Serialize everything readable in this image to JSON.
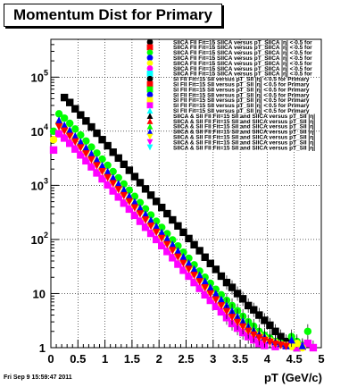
{
  "chart_data": {
    "type": "scatter",
    "title": "Momentum Dist for Primary",
    "xlabel": "pT (GeV/c)",
    "ylabel": "",
    "xlim": [
      0,
      5
    ],
    "ylim": [
      1,
      500000
    ],
    "y_scale": "log",
    "grid": true,
    "legend_placement": "top-right",
    "x_ticks": [
      "0",
      "0.5",
      "1",
      "1.5",
      "2",
      "2.5",
      "3",
      "3.5",
      "4",
      "4.5",
      "5"
    ],
    "y_ticks": [
      {
        "mantissa": "1",
        "exp": ""
      },
      {
        "mantissa": "10",
        "exp": ""
      },
      {
        "mantissa": "10",
        "exp": "2"
      },
      {
        "mantissa": "10",
        "exp": "3"
      },
      {
        "mantissa": "10",
        "exp": "4"
      },
      {
        "mantissa": "10",
        "exp": "5"
      }
    ],
    "x": [
      0.05,
      0.15,
      0.25,
      0.35,
      0.45,
      0.55,
      0.65,
      0.75,
      0.85,
      0.95,
      1.05,
      1.15,
      1.25,
      1.35,
      1.45,
      1.55,
      1.65,
      1.75,
      1.85,
      1.95,
      2.05,
      2.15,
      2.25,
      2.35,
      2.45,
      2.55,
      2.65,
      2.75,
      2.85,
      2.95,
      3.05,
      3.15,
      3.25,
      3.35,
      3.45,
      3.55,
      3.65,
      3.75,
      3.85,
      3.95,
      4.05,
      4.15,
      4.25,
      4.35,
      4.45,
      4.55,
      4.65,
      4.75,
      4.85,
      4.95
    ],
    "series": [
      {
        "marker": "square",
        "color": "#000000",
        "values": [
          null,
          null,
          42000,
          34000,
          26000,
          20000,
          15500,
          12000,
          9200,
          7000,
          5400,
          4100,
          3200,
          2450,
          1900,
          1450,
          1120,
          860,
          660,
          505,
          390,
          300,
          230,
          178,
          136,
          104,
          80,
          62,
          47,
          36,
          28,
          21,
          16,
          13,
          10,
          8,
          6,
          5,
          4,
          3.2,
          2.6,
          2,
          1.6,
          1.3,
          1.1,
          1,
          null,
          null,
          null,
          null
        ]
      },
      {
        "marker": "circle",
        "color": "#00ff00",
        "values": [
          10000,
          21000,
          17500,
          14000,
          11000,
          8500,
          6600,
          5100,
          3950,
          3050,
          2350,
          1800,
          1380,
          1060,
          815,
          625,
          480,
          368,
          283,
          217,
          167,
          128,
          98,
          76,
          58,
          45,
          34,
          26,
          20,
          15.5,
          12,
          9.5,
          7.5,
          6,
          4.8,
          3.8,
          3,
          2.5,
          2,
          1.7,
          1.5,
          1.3,
          1.2,
          1.1,
          1.6,
          1.3,
          1.1,
          2,
          null,
          null
        ]
      },
      {
        "marker": "square",
        "color": "#ff00ff",
        "values": [
          4500,
          9000,
          7500,
          6000,
          4700,
          3650,
          2850,
          2200,
          1700,
          1320,
          1020,
          790,
          610,
          470,
          365,
          280,
          217,
          168,
          130,
          100,
          77,
          60,
          46,
          35,
          27,
          21,
          16,
          12.5,
          9.5,
          7.5,
          5.8,
          4.6,
          3.6,
          2.8,
          2.3,
          1.9,
          1.6,
          1.4,
          1.2,
          1.1,
          null,
          1.05,
          null,
          1.1,
          null,
          1,
          1.05,
          1.2,
          1,
          null
        ]
      },
      {
        "marker": "circle",
        "color": "#ffff00",
        "values": [
          7000,
          14000,
          11500,
          9200,
          7200,
          5600,
          4350,
          3380,
          2620,
          2030,
          1570,
          1210,
          935,
          720,
          555,
          428,
          330,
          254,
          196,
          151,
          116,
          90,
          69,
          53,
          41,
          31,
          24,
          18.5,
          14,
          11,
          8.5,
          6.6,
          5.2,
          4.1,
          3.3,
          2.7,
          2.2,
          1.9,
          1.7,
          1.5,
          1.35,
          1.25,
          1.15,
          1.1,
          1.05,
          1.2,
          1,
          null,
          null,
          null
        ]
      },
      {
        "marker": "triangle-up",
        "color": "#0000ff",
        "values": [
          null,
          16000,
          13000,
          10500,
          8200,
          6400,
          5000,
          3880,
          3010,
          2340,
          1810,
          1400,
          1080,
          835,
          645,
          498,
          384,
          296,
          228,
          176,
          136,
          105,
          81,
          62,
          48,
          37,
          28.5,
          22,
          17,
          13,
          10,
          7.8,
          6.1,
          4.8,
          3.8,
          3.1,
          2.5,
          2.1,
          1.8,
          1.6,
          1.4,
          1.3,
          1.2,
          1.1,
          1.4,
          null,
          1.1,
          null,
          null,
          null
        ]
      },
      {
        "marker": "triangle-down",
        "color": "#ff0000",
        "values": [
          null,
          12000,
          10000,
          8000,
          6300,
          4900,
          3800,
          2950,
          2290,
          1780,
          1380,
          1070,
          830,
          640,
          495,
          382,
          295,
          227,
          175,
          135,
          104,
          80,
          62,
          47,
          36,
          28,
          21.5,
          16.5,
          12.7,
          9.8,
          7.6,
          5.9,
          4.6,
          3.6,
          2.9,
          2.4,
          2,
          1.7,
          1.5,
          1.35,
          1.25,
          1.15,
          1.1,
          1.05,
          null,
          null,
          null,
          null,
          null,
          null
        ]
      }
    ],
    "legend": [
      {
        "marker": "circle",
        "color": "#000000",
        "label": "SIICA FIl Fit=15 SIICA versus pT_SIICA |η| < 0.5 for"
      },
      {
        "marker": "square",
        "color": "#ff0000",
        "label": "SIICA FIl Fit=15 SIICA versus pT_SIICA |η| < 0.5 for"
      },
      {
        "marker": "circle",
        "color": "#00ff00",
        "label": "SIICA FIl Fit=15 SIICA versus pT_SIICA |η| < 0.5 for"
      },
      {
        "marker": "circle",
        "color": "#0000ff",
        "label": "SIICA FIl Fit=15 SIICA versus pT_SIICA |η| < 0.5 for"
      },
      {
        "marker": "circle",
        "color": "#ffff00",
        "label": "SIICA FIl Fit=15 SIICA versus pT_SIICA |η| < 0.5 for"
      },
      {
        "marker": "circle",
        "color": "#ff00ff",
        "label": "SIICA FIl Fit=15 SIICA versus pT_SIICA |η| < 0.5 for"
      },
      {
        "marker": "square",
        "color": "#00ffff",
        "label": "SIICA FIl Fit=15 SIICA versus pT_SIICA |η| < 0.5 for"
      },
      {
        "marker": "circle",
        "color": "#000000",
        "label": "SI FIl Fit=15 SII versus pT_SII |η| < 0.5 for Primary"
      },
      {
        "marker": "square",
        "color": "#ff0000",
        "label": "SI FIl Fit=15 SII versus pT_SII |η| < 0.5 for Primary"
      },
      {
        "marker": "square",
        "color": "#00ff00",
        "label": "SI FIl Fit=15 SII versus pT_SII |η| < 0.5 for Primary"
      },
      {
        "marker": "circle",
        "color": "#0000ff",
        "label": "SI FIl Fit=15 SII versus pT_SII |η| < 0.5 for Primary"
      },
      {
        "marker": "square",
        "color": "#ffff00",
        "label": "SI FIl Fit=15 SII versus pT_SII |η| < 0.5 for Primary"
      },
      {
        "marker": "square",
        "color": "#ff00ff",
        "label": "SI FIl Fit=15 SII versus pT_SII |η| < 0.5 for Primary"
      },
      {
        "marker": "triangle-up",
        "color": "#00ffff",
        "label": "SI FIl Fit=15 SII versus pT_SII |η| < 0.5 for Primary"
      },
      {
        "marker": "triangle-up",
        "color": "#000000",
        "label": "SIICA & SII FIl Fit=15 SII and SIICA versus pT_SII |η|"
      },
      {
        "marker": "triangle-up",
        "color": "#ff0000",
        "label": "SIICA & SII FIl Fit=15 SII and SIICA versus pT_SII |η|"
      },
      {
        "marker": "triangle-up",
        "color": "#00ff00",
        "label": "SIICA & SII FIl Fit=15 SII and SIICA versus pT_SII |η|"
      },
      {
        "marker": "triangle-up",
        "color": "#0000ff",
        "label": "SIICA & SII FIl Fit=15 SII and SIICA versus pT_SII |η|"
      },
      {
        "marker": "triangle-down",
        "color": "#ffff00",
        "label": "SIICA & SII FIl Fit=15 SII and SIICA versus pT_SII |η|"
      },
      {
        "marker": "triangle-down",
        "color": "#ff00ff",
        "label": "SIICA & SII FIl Fit=15 SII and SIICA versus pT_SII |η|"
      },
      {
        "marker": "triangle-down",
        "color": "#00ffff",
        "label": "SIICA & SII FIl Fit=15 SII and SIICA versus pT_SII |η|"
      }
    ]
  },
  "footer": {
    "timestamp": "Fri Sep  9 15:59:47 2011"
  }
}
